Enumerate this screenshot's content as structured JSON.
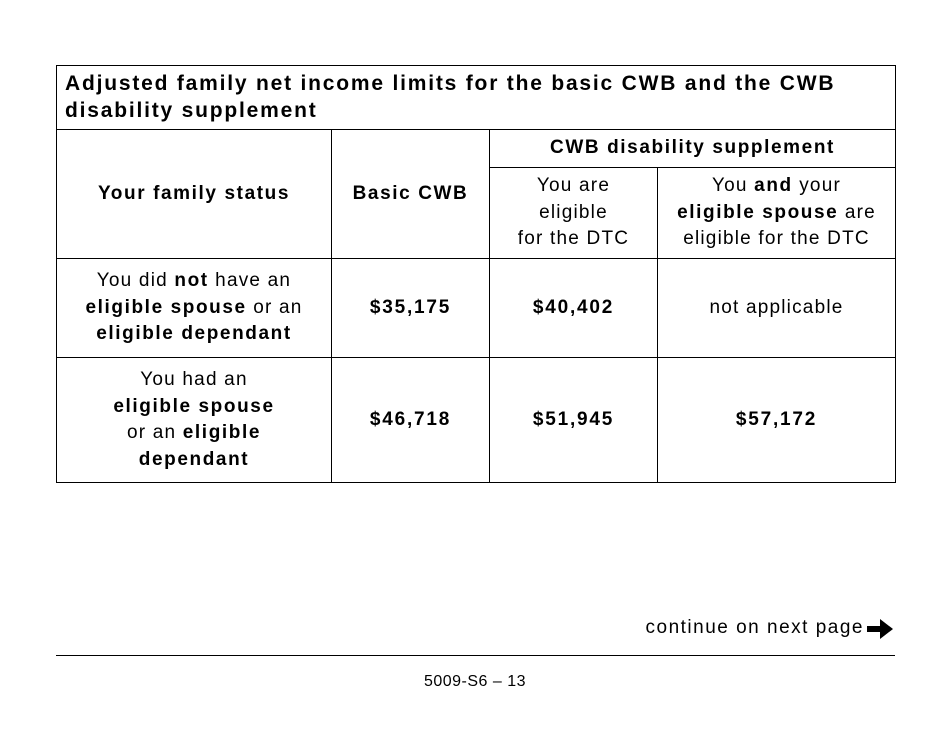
{
  "table": {
    "title": "Adjusted family net income limits for the basic CWB and the CWB disability supplement",
    "header": {
      "family_status": "Your family status",
      "basic": "Basic CWB",
      "supplement": "CWB disability supplement",
      "sub": [
        [
          "You are",
          "eligible",
          "for the DTC"
        ],
        [
          "You ",
          "and",
          " your",
          "eligible spouse",
          " are",
          "eligible for the DTC"
        ]
      ]
    },
    "rows": [
      {
        "status": [
          "You did ",
          "not",
          " have an",
          "eligible spouse",
          " or an",
          "eligible dependant"
        ],
        "basic": "$35,175",
        "dtc": "$40,402",
        "spouse_dtc": "not applicable"
      },
      {
        "status": [
          "You had an",
          "eligible spouse",
          "or an ",
          "eligible",
          "dependant"
        ],
        "basic": "$46,718",
        "dtc": "$51,945",
        "spouse_dtc": "$57,172"
      }
    ]
  },
  "footer": {
    "continue": "continue on next page",
    "page": "5009-S6 – 13"
  }
}
